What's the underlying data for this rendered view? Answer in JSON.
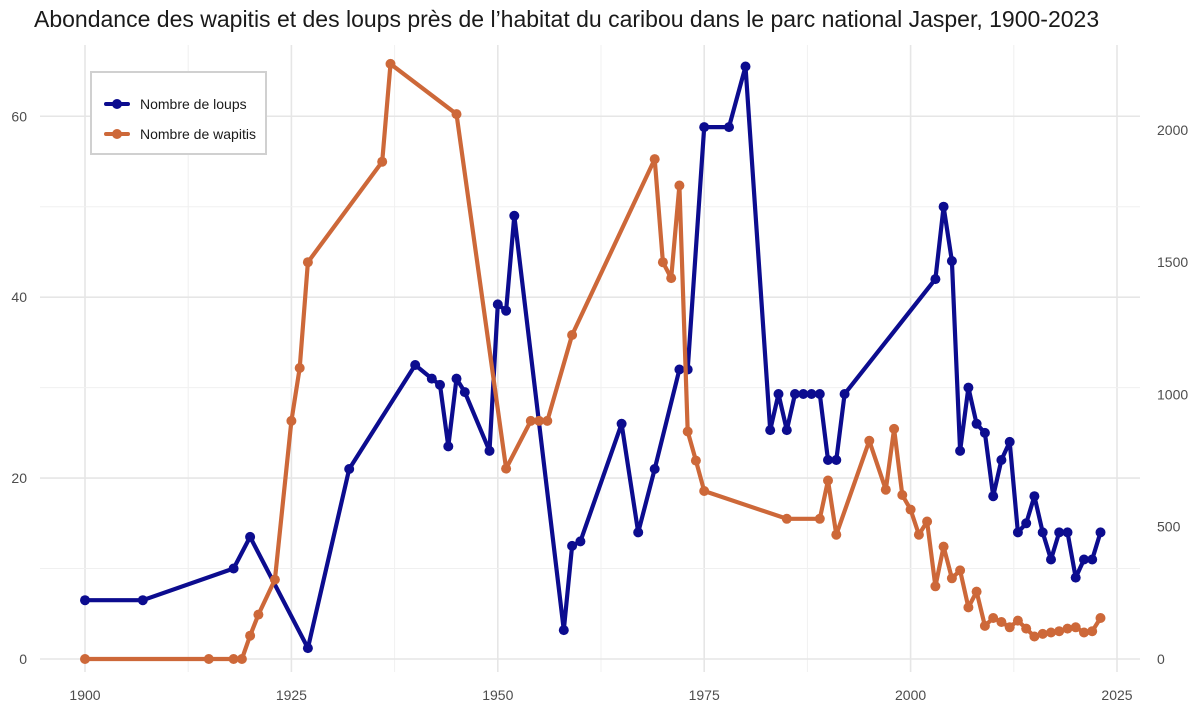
{
  "chart_data": {
    "type": "line",
    "title": "Abondance des wapitis et des loups près de l’habitat du caribou dans le parc national Jasper, 1900-2023",
    "xlabel": "",
    "ylabel_left": "",
    "ylabel_right": "",
    "xlim": [
      1900,
      2025
    ],
    "ylim_left": [
      0,
      65.5
    ],
    "ylim_right": [
      0,
      2240
    ],
    "x_ticks": [
      1900,
      1925,
      1950,
      1975,
      2000,
      2025
    ],
    "y_left_ticks": [
      0,
      20,
      40,
      60
    ],
    "y_right_ticks": [
      0,
      500,
      1000,
      1500,
      2000
    ],
    "grid": true,
    "legend_position": "top-left",
    "series": [
      {
        "name": "Nombre de loups",
        "axis": "left",
        "color": "#0c0c8f",
        "points": [
          [
            1900,
            6.5
          ],
          [
            1907,
            6.5
          ],
          [
            1918,
            10
          ],
          [
            1920,
            13.5
          ],
          [
            1927,
            1.2
          ],
          [
            1932,
            21
          ],
          [
            1940,
            32.5
          ],
          [
            1942,
            31
          ],
          [
            1943,
            30.3
          ],
          [
            1944,
            23.5
          ],
          [
            1945,
            31
          ],
          [
            1946,
            29.5
          ],
          [
            1949,
            23
          ],
          [
            1950,
            39.2
          ],
          [
            1951,
            38.5
          ],
          [
            1952,
            49
          ],
          [
            1958,
            3.2
          ],
          [
            1959,
            12.5
          ],
          [
            1960,
            13
          ],
          [
            1965,
            26
          ],
          [
            1967,
            14
          ],
          [
            1969,
            21
          ],
          [
            1972,
            32
          ],
          [
            1973,
            32
          ],
          [
            1975,
            58.8
          ],
          [
            1978,
            58.8
          ],
          [
            1980,
            65.5
          ],
          [
            1983,
            25.3
          ],
          [
            1984,
            29.3
          ],
          [
            1985,
            25.3
          ],
          [
            1986,
            29.3
          ],
          [
            1987,
            29.3
          ],
          [
            1988,
            29.3
          ],
          [
            1989,
            29.3
          ],
          [
            1990,
            22
          ],
          [
            1991,
            22
          ],
          [
            1992,
            29.3
          ],
          [
            2003,
            42
          ],
          [
            2004,
            50
          ],
          [
            2005,
            44
          ],
          [
            2006,
            23
          ],
          [
            2007,
            30
          ],
          [
            2008,
            26
          ],
          [
            2009,
            25
          ],
          [
            2010,
            18
          ],
          [
            2011,
            22
          ],
          [
            2012,
            24
          ],
          [
            2013,
            14
          ],
          [
            2014,
            15
          ],
          [
            2015,
            18
          ],
          [
            2016,
            14
          ],
          [
            2017,
            11
          ],
          [
            2018,
            14
          ],
          [
            2019,
            14
          ],
          [
            2020,
            9
          ],
          [
            2021,
            11
          ],
          [
            2022,
            11
          ],
          [
            2023,
            14
          ]
        ]
      },
      {
        "name": "Nombre de wapitis",
        "axis": "right",
        "color": "#cd6839",
        "points": [
          [
            1900,
            0
          ],
          [
            1915,
            0
          ],
          [
            1918,
            0
          ],
          [
            1919,
            0
          ],
          [
            1920,
            88
          ],
          [
            1921,
            168
          ],
          [
            1923,
            300
          ],
          [
            1925,
            900
          ],
          [
            1926,
            1100
          ],
          [
            1927,
            1500
          ],
          [
            1936,
            1880
          ],
          [
            1937,
            2250
          ],
          [
            1945,
            2060
          ],
          [
            1951,
            720
          ],
          [
            1954,
            900
          ],
          [
            1955,
            900
          ],
          [
            1956,
            900
          ],
          [
            1959,
            1225
          ],
          [
            1969,
            1890
          ],
          [
            1970,
            1500
          ],
          [
            1971,
            1440
          ],
          [
            1972,
            1790
          ],
          [
            1973,
            860
          ],
          [
            1974,
            750
          ],
          [
            1975,
            635
          ],
          [
            1985,
            530
          ],
          [
            1989,
            530
          ],
          [
            1990,
            675
          ],
          [
            1991,
            470
          ],
          [
            1995,
            825
          ],
          [
            1997,
            640
          ],
          [
            1998,
            870
          ],
          [
            1999,
            620
          ],
          [
            2000,
            565
          ],
          [
            2001,
            470
          ],
          [
            2002,
            520
          ],
          [
            2003,
            275
          ],
          [
            2004,
            425
          ],
          [
            2005,
            305
          ],
          [
            2006,
            335
          ],
          [
            2007,
            195
          ],
          [
            2008,
            255
          ],
          [
            2009,
            125
          ],
          [
            2010,
            155
          ],
          [
            2011,
            140
          ],
          [
            2012,
            120
          ],
          [
            2013,
            145
          ],
          [
            2014,
            115
          ],
          [
            2015,
            85
          ],
          [
            2016,
            95
          ],
          [
            2017,
            100
          ],
          [
            2018,
            105
          ],
          [
            2019,
            115
          ],
          [
            2020,
            120
          ],
          [
            2021,
            100
          ],
          [
            2022,
            105
          ],
          [
            2023,
            155
          ]
        ]
      }
    ]
  }
}
